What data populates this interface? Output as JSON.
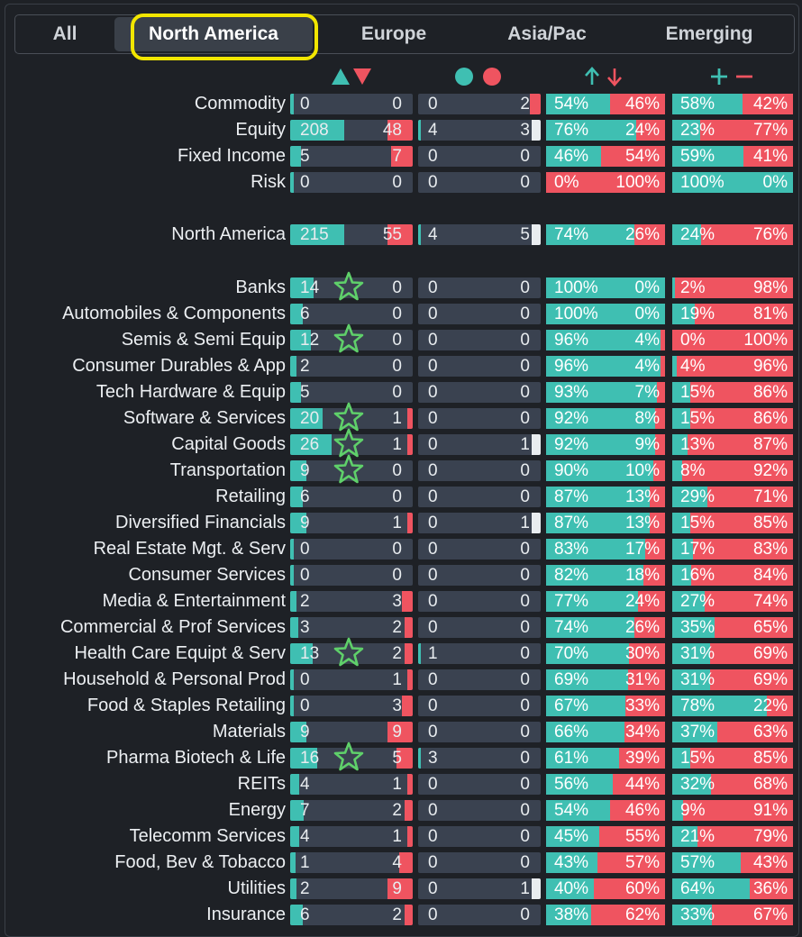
{
  "tabs": [
    {
      "label": "All"
    },
    {
      "label": "North America"
    },
    {
      "label": "Europe"
    },
    {
      "label": "Asia/Pac"
    },
    {
      "label": "Emerging"
    }
  ],
  "active_tab": "North America",
  "headers": {
    "col1": "up-down-triangle-icon",
    "col2": "green-red-circle-icon",
    "col3": "up-down-arrow-icon",
    "col4": "plus-minus-icon"
  },
  "colors": {
    "teal": "#3fbfb2",
    "red": "#ef5460",
    "cell": "#3a4250",
    "highlight": "#f2e600",
    "star": "#5fd06a"
  },
  "rows": [
    {
      "label": "Commodity",
      "a": "0",
      "b": "0",
      "c": "0",
      "d": "2",
      "p1": "54%",
      "p2": "46%",
      "g1": 54,
      "q1": "58%",
      "q2": "42%",
      "g2": 58,
      "star": false
    },
    {
      "label": "Equity",
      "a": "208",
      "b": "48",
      "c": "4",
      "d": "3",
      "p1": "76%",
      "p2": "24%",
      "g1": 76,
      "q1": "23%",
      "q2": "77%",
      "g2": 23,
      "star": false
    },
    {
      "label": "Fixed Income",
      "a": "5",
      "b": "7",
      "c": "0",
      "d": "0",
      "p1": "46%",
      "p2": "54%",
      "g1": 46,
      "q1": "59%",
      "q2": "41%",
      "g2": 59,
      "star": false
    },
    {
      "label": "Risk",
      "a": "0",
      "b": "0",
      "c": "0",
      "d": "0",
      "p1": "0%",
      "p2": "100%",
      "g1": 0,
      "q1": "100%",
      "q2": "0%",
      "g2": 100,
      "star": false
    },
    {
      "label": "North America",
      "a": "215",
      "b": "55",
      "c": "4",
      "d": "5",
      "p1": "74%",
      "p2": "26%",
      "g1": 74,
      "q1": "24%",
      "q2": "76%",
      "g2": 24,
      "star": false
    },
    {
      "label": "Banks",
      "a": "14",
      "b": "0",
      "c": "0",
      "d": "0",
      "p1": "100%",
      "p2": "0%",
      "g1": 100,
      "q1": "2%",
      "q2": "98%",
      "g2": 2,
      "star": true
    },
    {
      "label": "Automobiles & Components",
      "a": "6",
      "b": "0",
      "c": "0",
      "d": "0",
      "p1": "100%",
      "p2": "0%",
      "g1": 100,
      "q1": "19%",
      "q2": "81%",
      "g2": 19,
      "star": false
    },
    {
      "label": "Semis & Semi Equip",
      "a": "12",
      "b": "0",
      "c": "0",
      "d": "0",
      "p1": "96%",
      "p2": "4%",
      "g1": 96,
      "q1": "0%",
      "q2": "100%",
      "g2": 0,
      "star": true
    },
    {
      "label": "Consumer Durables & App",
      "a": "2",
      "b": "0",
      "c": "0",
      "d": "0",
      "p1": "96%",
      "p2": "4%",
      "g1": 96,
      "q1": "4%",
      "q2": "96%",
      "g2": 4,
      "star": false
    },
    {
      "label": "Tech Hardware & Equip",
      "a": "5",
      "b": "0",
      "c": "0",
      "d": "0",
      "p1": "93%",
      "p2": "7%",
      "g1": 93,
      "q1": "15%",
      "q2": "86%",
      "g2": 15,
      "star": false
    },
    {
      "label": "Software & Services",
      "a": "20",
      "b": "1",
      "c": "0",
      "d": "0",
      "p1": "92%",
      "p2": "8%",
      "g1": 92,
      "q1": "15%",
      "q2": "86%",
      "g2": 15,
      "star": true
    },
    {
      "label": "Capital Goods",
      "a": "26",
      "b": "1",
      "c": "0",
      "d": "1",
      "p1": "92%",
      "p2": "9%",
      "g1": 92,
      "q1": "13%",
      "q2": "87%",
      "g2": 13,
      "star": true
    },
    {
      "label": "Transportation",
      "a": "9",
      "b": "0",
      "c": "0",
      "d": "0",
      "p1": "90%",
      "p2": "10%",
      "g1": 90,
      "q1": "8%",
      "q2": "92%",
      "g2": 8,
      "star": true
    },
    {
      "label": "Retailing",
      "a": "6",
      "b": "0",
      "c": "0",
      "d": "0",
      "p1": "87%",
      "p2": "13%",
      "g1": 87,
      "q1": "29%",
      "q2": "71%",
      "g2": 29,
      "star": false
    },
    {
      "label": "Diversified Financials",
      "a": "9",
      "b": "1",
      "c": "0",
      "d": "1",
      "p1": "87%",
      "p2": "13%",
      "g1": 87,
      "q1": "15%",
      "q2": "85%",
      "g2": 15,
      "star": false
    },
    {
      "label": "Real Estate Mgt. & Serv",
      "a": "0",
      "b": "0",
      "c": "0",
      "d": "0",
      "p1": "83%",
      "p2": "17%",
      "g1": 83,
      "q1": "17%",
      "q2": "83%",
      "g2": 17,
      "star": false
    },
    {
      "label": "Consumer Services",
      "a": "0",
      "b": "0",
      "c": "0",
      "d": "0",
      "p1": "82%",
      "p2": "18%",
      "g1": 82,
      "q1": "16%",
      "q2": "84%",
      "g2": 16,
      "star": false
    },
    {
      "label": "Media & Entertainment",
      "a": "2",
      "b": "3",
      "c": "0",
      "d": "0",
      "p1": "77%",
      "p2": "24%",
      "g1": 77,
      "q1": "27%",
      "q2": "74%",
      "g2": 27,
      "star": false
    },
    {
      "label": "Commercial & Prof Services",
      "a": "3",
      "b": "2",
      "c": "0",
      "d": "0",
      "p1": "74%",
      "p2": "26%",
      "g1": 74,
      "q1": "35%",
      "q2": "65%",
      "g2": 35,
      "star": false
    },
    {
      "label": "Health Care Equipt & Serv",
      "a": "13",
      "b": "2",
      "c": "1",
      "d": "0",
      "p1": "70%",
      "p2": "30%",
      "g1": 70,
      "q1": "31%",
      "q2": "69%",
      "g2": 31,
      "star": true
    },
    {
      "label": "Household & Personal Prod",
      "a": "0",
      "b": "1",
      "c": "0",
      "d": "0",
      "p1": "69%",
      "p2": "31%",
      "g1": 69,
      "q1": "31%",
      "q2": "69%",
      "g2": 31,
      "star": false
    },
    {
      "label": "Food & Staples Retailing",
      "a": "0",
      "b": "3",
      "c": "0",
      "d": "0",
      "p1": "67%",
      "p2": "33%",
      "g1": 67,
      "q1": "78%",
      "q2": "22%",
      "g2": 78,
      "star": false
    },
    {
      "label": "Materials",
      "a": "9",
      "b": "9",
      "c": "0",
      "d": "0",
      "p1": "66%",
      "p2": "34%",
      "g1": 66,
      "q1": "37%",
      "q2": "63%",
      "g2": 37,
      "star": false
    },
    {
      "label": "Pharma Biotech & Life",
      "a": "16",
      "b": "5",
      "c": "3",
      "d": "0",
      "p1": "61%",
      "p2": "39%",
      "g1": 61,
      "q1": "15%",
      "q2": "85%",
      "g2": 15,
      "star": true
    },
    {
      "label": "REITs",
      "a": "4",
      "b": "1",
      "c": "0",
      "d": "0",
      "p1": "56%",
      "p2": "44%",
      "g1": 56,
      "q1": "32%",
      "q2": "68%",
      "g2": 32,
      "star": false
    },
    {
      "label": "Energy",
      "a": "7",
      "b": "2",
      "c": "0",
      "d": "0",
      "p1": "54%",
      "p2": "46%",
      "g1": 54,
      "q1": "9%",
      "q2": "91%",
      "g2": 9,
      "star": false
    },
    {
      "label": "Telecomm Services",
      "a": "4",
      "b": "1",
      "c": "0",
      "d": "0",
      "p1": "45%",
      "p2": "55%",
      "g1": 45,
      "q1": "21%",
      "q2": "79%",
      "g2": 21,
      "star": false
    },
    {
      "label": "Food, Bev & Tobacco",
      "a": "1",
      "b": "4",
      "c": "0",
      "d": "0",
      "p1": "43%",
      "p2": "57%",
      "g1": 43,
      "q1": "57%",
      "q2": "43%",
      "g2": 57,
      "star": false
    },
    {
      "label": "Utilities",
      "a": "2",
      "b": "9",
      "c": "0",
      "d": "1",
      "p1": "40%",
      "p2": "60%",
      "g1": 40,
      "q1": "64%",
      "q2": "36%",
      "g2": 64,
      "star": false
    },
    {
      "label": "Insurance",
      "a": "6",
      "b": "2",
      "c": "0",
      "d": "0",
      "p1": "38%",
      "p2": "62%",
      "g1": 38,
      "q1": "33%",
      "q2": "67%",
      "g2": 33,
      "star": false
    }
  ]
}
